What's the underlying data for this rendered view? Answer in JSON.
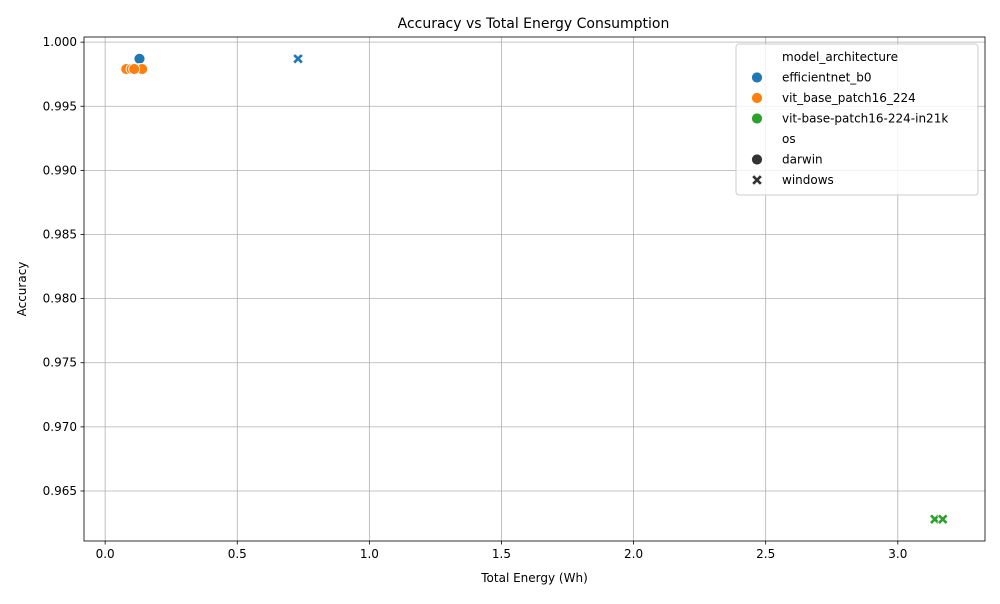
{
  "chart_data": {
    "type": "scatter",
    "title": "Accuracy vs Total Energy Consumption",
    "xlabel": "Total Energy (Wh)",
    "ylabel": "Accuracy",
    "xlim": [
      -0.08,
      3.33
    ],
    "ylim": [
      0.9611,
      1.0004
    ],
    "xticks": [
      "0.0",
      "0.5",
      "1.0",
      "1.5",
      "2.0",
      "2.5",
      "3.0"
    ],
    "xtick_values": [
      0.0,
      0.5,
      1.0,
      1.5,
      2.0,
      2.5,
      3.0
    ],
    "yticks": [
      "0.965",
      "0.970",
      "0.975",
      "0.980",
      "0.985",
      "0.990",
      "0.995",
      "1.000"
    ],
    "ytick_values": [
      0.965,
      0.97,
      0.975,
      0.98,
      0.985,
      0.99,
      0.995,
      1.0
    ],
    "grid": true,
    "legend_placement": "top-right",
    "hue_title": "model_architecture",
    "style_title": "os",
    "series": [
      {
        "name": "efficientnet_b0",
        "color": "#1f77b4",
        "points": [
          {
            "x": 0.13,
            "y": 0.9987,
            "os": "darwin"
          },
          {
            "x": 0.73,
            "y": 0.9987,
            "os": "windows"
          }
        ]
      },
      {
        "name": "vit_base_patch16_224",
        "color": "#ff7f0e",
        "points": [
          {
            "x": 0.08,
            "y": 0.9979,
            "os": "darwin"
          },
          {
            "x": 0.1,
            "y": 0.9979,
            "os": "darwin"
          },
          {
            "x": 0.13,
            "y": 0.9979,
            "os": "darwin"
          },
          {
            "x": 0.14,
            "y": 0.9979,
            "os": "darwin"
          },
          {
            "x": 0.11,
            "y": 0.9979,
            "os": "darwin"
          }
        ]
      },
      {
        "name": "vit-base-patch16-224-in21k",
        "color": "#2ca02c",
        "points": [
          {
            "x": 3.14,
            "y": 0.9628,
            "os": "windows"
          },
          {
            "x": 3.17,
            "y": 0.9628,
            "os": "windows"
          }
        ]
      }
    ],
    "styles": [
      {
        "name": "darwin",
        "marker": "circle"
      },
      {
        "name": "windows",
        "marker": "x"
      }
    ]
  }
}
